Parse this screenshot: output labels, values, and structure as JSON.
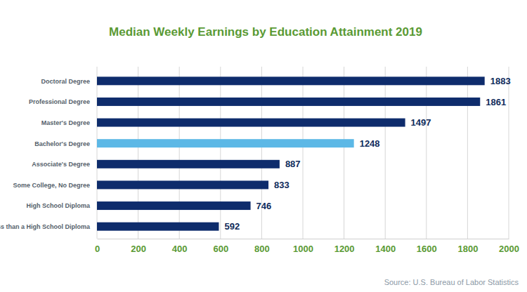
{
  "chart_data": {
    "type": "bar",
    "orientation": "horizontal",
    "title": "Median Weekly Earnings by Education Attainment 2019",
    "categories": [
      "Doctoral Degree",
      "Professional Degree",
      "Master's Degree",
      "Bachelor's Degree",
      "Associate's Degree",
      "Some College, No Degree",
      "High School Diploma",
      "Less than a High School Diploma"
    ],
    "values": [
      1883,
      1861,
      1497,
      1248,
      887,
      833,
      746,
      592
    ],
    "colors": [
      "#0e2c6c",
      "#0e2c6c",
      "#0e2c6c",
      "#5cb8e6",
      "#0e2c6c",
      "#0e2c6c",
      "#0e2c6c",
      "#0e2c6c"
    ],
    "xlim": [
      0,
      2000
    ],
    "xticks": [
      0,
      200,
      400,
      600,
      800,
      1000,
      1200,
      1400,
      1600,
      1800,
      2000
    ],
    "grid": true,
    "data_labels": true,
    "annotations": [
      "Source: U.S. Bureau of Labor Statistics"
    ]
  }
}
